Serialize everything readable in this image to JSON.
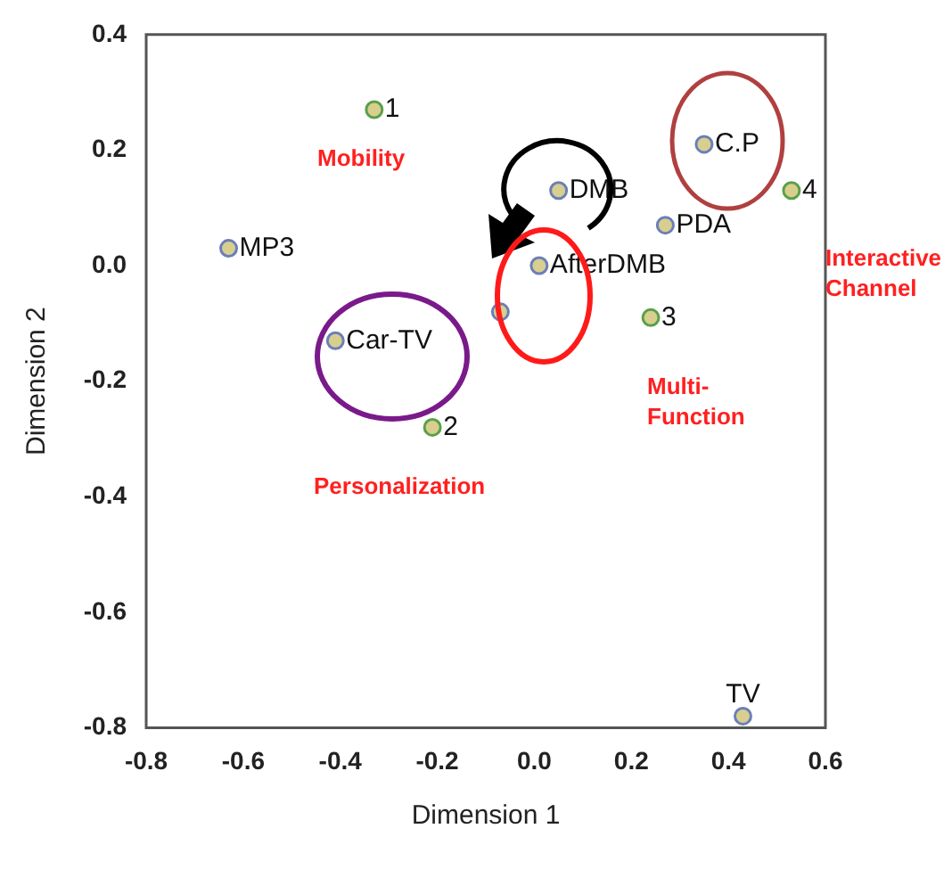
{
  "chart_data": {
    "type": "scatter",
    "xlabel": "Dimension 1",
    "ylabel": "Dimension 2",
    "xlim": [
      -0.8,
      0.6
    ],
    "xticks": [
      {
        "value": -0.8,
        "label": "-0.8"
      },
      {
        "value": -0.6,
        "label": "-0.6"
      },
      {
        "value": -0.4,
        "label": "-0.4"
      },
      {
        "value": -0.2,
        "label": "-0.2"
      },
      {
        "value": 0,
        "label": "0.0"
      },
      {
        "value": 0.2,
        "label": "0.2"
      },
      {
        "value": 0.4,
        "label": "0.4"
      },
      {
        "value": 0.6,
        "label": "0.6"
      }
    ],
    "ylim": [
      -0.8,
      0.4
    ],
    "yticks": [
      {
        "value": -0.8,
        "label": "-0.8"
      },
      {
        "value": -0.6,
        "label": "-0.6"
      },
      {
        "value": -0.4,
        "label": "-0.4"
      },
      {
        "value": -0.2,
        "label": "-0.2"
      },
      {
        "value": 0,
        "label": "0.0"
      },
      {
        "value": 0.2,
        "label": "0.2"
      },
      {
        "value": 0.4,
        "label": "0.4"
      }
    ],
    "grid": false,
    "legend": false,
    "marker": "circle",
    "series": [
      {
        "color": "#6b7fb8",
        "x": [
          -0.63,
          -0.41,
          -0.07,
          0.01,
          0.05,
          0.27,
          0.35,
          0.43
        ],
        "values": [
          0.03,
          -0.13,
          -0.08,
          0.0,
          0.13,
          0.07,
          0.21,
          -0.78
        ]
      },
      {
        "color": "#5aa04a",
        "x": [
          -0.33,
          -0.21,
          0.24,
          0.53
        ],
        "values": [
          0.27,
          -0.28,
          -0.09,
          0.13
        ]
      }
    ],
    "annotations": [
      {
        "text": "MP3",
        "x": -0.63,
        "y": 0.03
      },
      {
        "text": "Car-TV",
        "x": -0.41,
        "y": -0.13
      },
      {
        "text": "AfterDMB",
        "x": 0.01,
        "y": 0.0
      },
      {
        "text": "DMB",
        "x": 0.05,
        "y": 0.13
      },
      {
        "text": "PDA",
        "x": 0.27,
        "y": 0.07
      },
      {
        "text": "C.P",
        "x": 0.35,
        "y": 0.21
      },
      {
        "text": "TV",
        "x": 0.43,
        "y": -0.78
      },
      {
        "text": "1",
        "x": -0.33,
        "y": 0.27
      },
      {
        "text": "2",
        "x": -0.21,
        "y": -0.28
      },
      {
        "text": "3",
        "x": 0.24,
        "y": -0.09
      },
      {
        "text": "4",
        "x": 0.53,
        "y": 0.13
      },
      "Mobility",
      "Personalization",
      "Multi-Function",
      "Interactive Channel"
    ]
  }
}
